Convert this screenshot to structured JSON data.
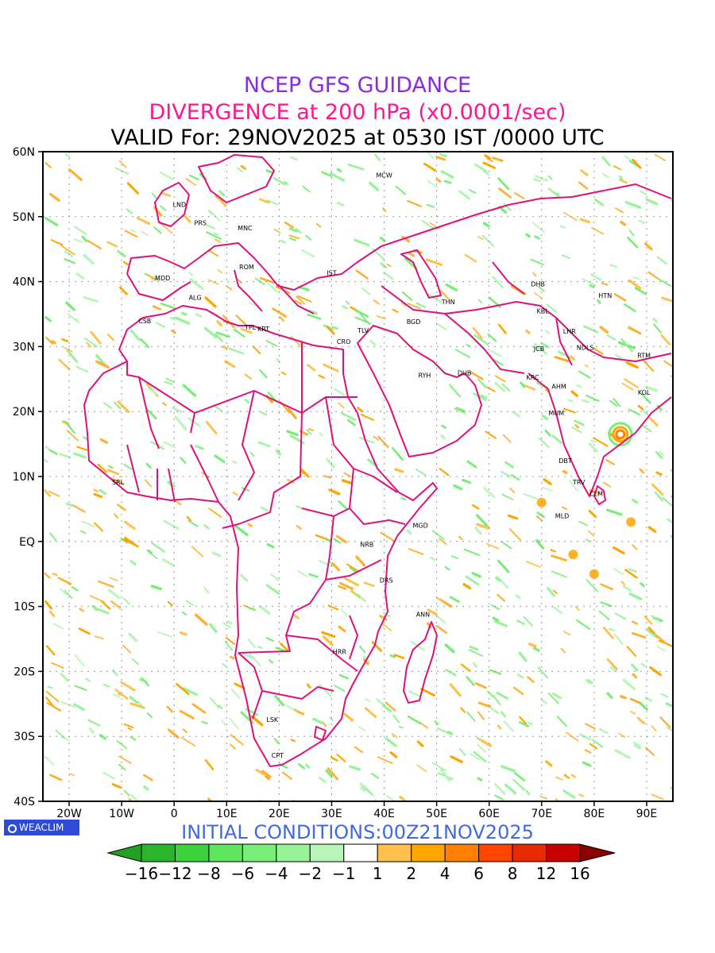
{
  "titles": {
    "line1": "NCEP GFS GUIDANCE",
    "line2": "DIVERGENCE at 200 hPa (x0.0001/sec)",
    "line3": "VALID For: 29NOV2025 at 0530 IST /0000 UTC",
    "line1_color": "#8a2be2",
    "line2_color": "#ff1493",
    "line3_color": "#000000"
  },
  "map": {
    "lon_range": [
      -25,
      95
    ],
    "lat_range": [
      -40,
      60
    ],
    "lon_labels": [
      "20W",
      "10W",
      "0",
      "10E",
      "20E",
      "30E",
      "40E",
      "50E",
      "60E",
      "70E",
      "80E",
      "90E"
    ],
    "lon_values": [
      -20,
      -10,
      0,
      10,
      20,
      30,
      40,
      50,
      60,
      70,
      80,
      90
    ],
    "lat_labels": [
      "60N",
      "50N",
      "40N",
      "30N",
      "20N",
      "10N",
      "EQ",
      "10S",
      "20S",
      "30S",
      "40S"
    ],
    "lat_values": [
      60,
      50,
      40,
      30,
      20,
      10,
      0,
      -10,
      -20,
      -30,
      -40
    ],
    "boundary_color": "#e0107a",
    "grid": "dotted",
    "cities": [
      {
        "name": "MCW",
        "lon": 40,
        "lat": 56
      },
      {
        "name": "LND",
        "lon": 1,
        "lat": 51.5
      },
      {
        "name": "PRS",
        "lon": 5,
        "lat": 48.7
      },
      {
        "name": "MNC",
        "lon": 13.5,
        "lat": 47.9
      },
      {
        "name": "ROM",
        "lon": 13.8,
        "lat": 41.9
      },
      {
        "name": "MDD",
        "lon": -2.2,
        "lat": 40.2
      },
      {
        "name": "IST",
        "lon": 30,
        "lat": 41
      },
      {
        "name": "ALG",
        "lon": 4,
        "lat": 37.2
      },
      {
        "name": "CSB",
        "lon": -5.6,
        "lat": 33.6
      },
      {
        "name": "TPL",
        "lon": 14.5,
        "lat": 32.6
      },
      {
        "name": "KRT",
        "lon": 17,
        "lat": 32.4
      },
      {
        "name": "TLV",
        "lon": 36,
        "lat": 32.1
      },
      {
        "name": "CRO",
        "lon": 32.3,
        "lat": 30.4
      },
      {
        "name": "BGD",
        "lon": 45.6,
        "lat": 33.5
      },
      {
        "name": "THN",
        "lon": 52.2,
        "lat": 36.5
      },
      {
        "name": "DHB",
        "lon": 69.3,
        "lat": 39.3
      },
      {
        "name": "HTN",
        "lon": 82.1,
        "lat": 37.5
      },
      {
        "name": "KBL",
        "lon": 70.2,
        "lat": 35.1
      },
      {
        "name": "LHR",
        "lon": 75.3,
        "lat": 32
      },
      {
        "name": "JCB",
        "lon": 69.5,
        "lat": 29.3
      },
      {
        "name": "NDLS",
        "lon": 78.3,
        "lat": 29.5
      },
      {
        "name": "RTM",
        "lon": 89.5,
        "lat": 28.3
      },
      {
        "name": "RYH",
        "lon": 47.7,
        "lat": 25.2
      },
      {
        "name": "DUB",
        "lon": 55.3,
        "lat": 25.6
      },
      {
        "name": "KRC",
        "lon": 68.3,
        "lat": 24.9
      },
      {
        "name": "AHM",
        "lon": 73.3,
        "lat": 23.5
      },
      {
        "name": "KOL",
        "lon": 89.5,
        "lat": 22.6
      },
      {
        "name": "MUM",
        "lon": 72.8,
        "lat": 19.4
      },
      {
        "name": "DBT",
        "lon": 74.5,
        "lat": 12.1
      },
      {
        "name": "SRL",
        "lon": -10.7,
        "lat": 8.8
      },
      {
        "name": "TRV",
        "lon": 77.1,
        "lat": 8.8
      },
      {
        "name": "CLM",
        "lon": 80.4,
        "lat": 7.0
      },
      {
        "name": "MGD",
        "lon": 46.9,
        "lat": 2.1
      },
      {
        "name": "MLD",
        "lon": 73.9,
        "lat": 3.6
      },
      {
        "name": "NRB",
        "lon": 36.7,
        "lat": -0.8
      },
      {
        "name": "DRS",
        "lon": 40.4,
        "lat": -6.3
      },
      {
        "name": "ANN",
        "lon": 47.4,
        "lat": -11.6
      },
      {
        "name": "HRR",
        "lon": 31.5,
        "lat": -17.3
      },
      {
        "name": "LSK",
        "lon": 18.7,
        "lat": -27.8
      },
      {
        "name": "CPT",
        "lon": 19.7,
        "lat": -33.3
      }
    ]
  },
  "logo": {
    "text": "WEACLIM"
  },
  "initial_conditions": "INITIAL  CONDITIONS:00Z21NOV2025",
  "colorbar": {
    "labels": [
      "−16",
      "−12",
      "−8",
      "−6",
      "−4",
      "−2",
      "−1",
      "1",
      "2",
      "4",
      "6",
      "8",
      "12",
      "16"
    ],
    "colors": [
      "#1f9a1f",
      "#2ab52a",
      "#3bd23b",
      "#5ee65e",
      "#78ee78",
      "#97f397",
      "#b8f5b8",
      "#ffffff",
      "#ffc04d",
      "#ffa500",
      "#ff7f00",
      "#ff4500",
      "#e82a00",
      "#c80000",
      "#a00000"
    ],
    "arrow_left": "#22a022",
    "arrow_right": "#8b0000"
  }
}
